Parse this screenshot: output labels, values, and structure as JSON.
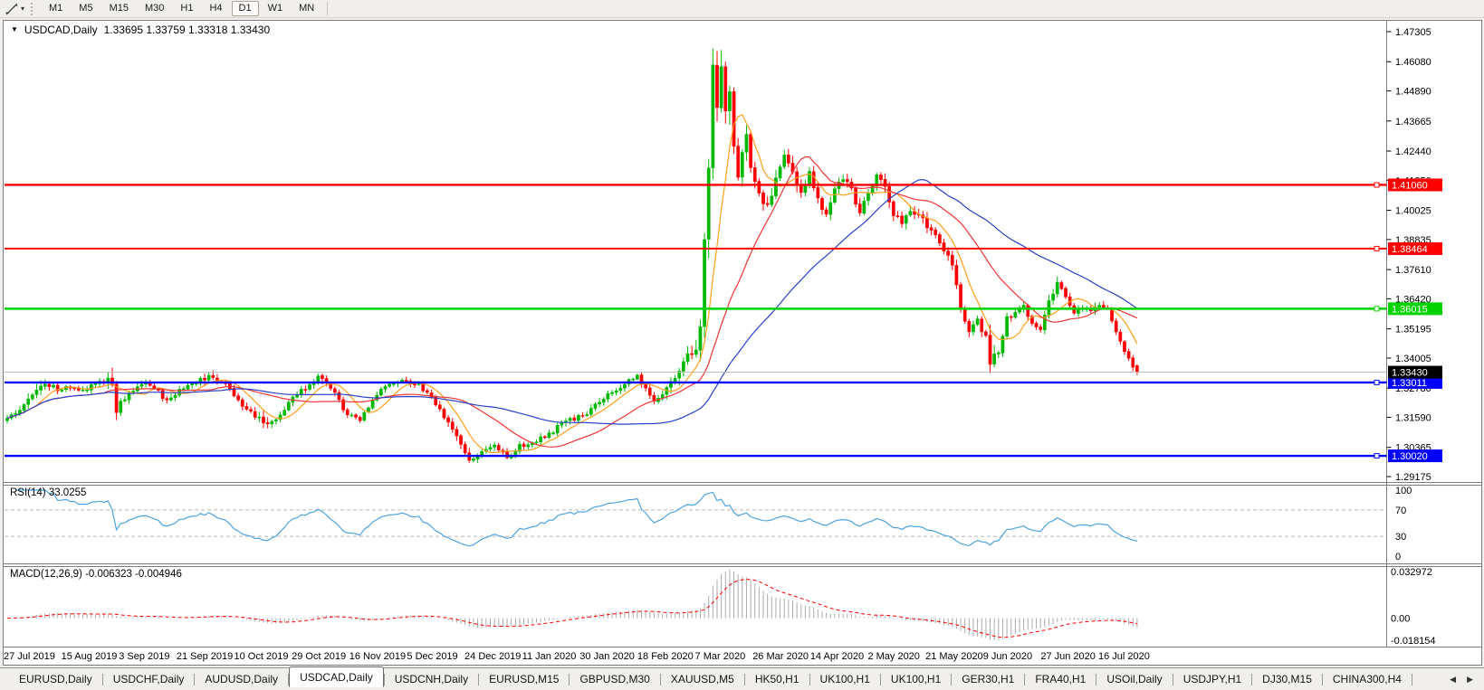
{
  "toolbar": {
    "timeframes": [
      "M1",
      "M5",
      "M15",
      "M30",
      "H1",
      "H4",
      "D1",
      "W1",
      "MN"
    ],
    "active_timeframe": "D1",
    "icons": {
      "tool_glyph": "trendline-icon",
      "dropdown_glyph": "▾"
    }
  },
  "chart": {
    "marker": "▼",
    "symbol_title": "USDCAD,Daily",
    "ohlc_text": "1.33695 1.33759 1.33318 1.33430"
  },
  "chart_data": {
    "type": "candlestick",
    "symbol": "USDCAD",
    "timeframe": "Daily",
    "last_ohlc": {
      "open": 1.33695,
      "high": 1.33759,
      "low": 1.33318,
      "close": 1.3343
    },
    "price_axis_ticks": [
      1.47305,
      1.4608,
      1.4489,
      1.43665,
      1.4244,
      1.4125,
      1.40025,
      1.38835,
      1.3761,
      1.3642,
      1.35195,
      1.34005,
      1.3278,
      1.3159,
      1.30365,
      1.29175
    ],
    "price_axis_range": {
      "top_price": 1.47305,
      "bottom_price": 1.29175
    },
    "date_axis_labels": [
      "27 Jul 2019",
      "15 Aug 2019",
      "3 Sep 2019",
      "21 Sep 2019",
      "10 Oct 2019",
      "29 Oct 2019",
      "16 Nov 2019",
      "5 Dec 2019",
      "24 Dec 2019",
      "11 Jan 2020",
      "30 Jan 2020",
      "18 Feb 2020",
      "7 Mar 2020",
      "26 Mar 2020",
      "14 Apr 2020",
      "2 May 2020",
      "21 May 2020",
      "9 Jun 2020",
      "27 Jun 2020",
      "16 Jul 2020"
    ],
    "horizontal_lines": [
      {
        "price": 1.4106,
        "label": "1.41060",
        "color": "#ff0000",
        "width": 2.4
      },
      {
        "price": 1.38464,
        "label": "1.38464",
        "color": "#ff0000",
        "width": 2.0
      },
      {
        "price": 1.36015,
        "label": "1.36015",
        "color": "#00d300",
        "width": 2.4
      },
      {
        "price": 1.33011,
        "label": "1.33011",
        "color": "#0000ff",
        "width": 2.4
      },
      {
        "price": 1.3002,
        "label": "1.30020",
        "color": "#0000ff",
        "width": 2.4
      }
    ],
    "current_price": {
      "value": 1.3343,
      "label": "1.33430",
      "line_color": "#bbbbbb",
      "box_color": "#000000"
    },
    "candles": {
      "count": 270,
      "seed": 12,
      "up_color": "#00b800",
      "down_color": "#ff0000",
      "close_anchors": [
        [
          0,
          1.316,
          2
        ],
        [
          3,
          1.3195,
          2
        ],
        [
          6,
          1.325,
          3
        ],
        [
          9,
          1.33,
          3
        ],
        [
          12,
          1.327,
          2
        ],
        [
          15,
          1.3285,
          2
        ],
        [
          18,
          1.3262,
          2
        ],
        [
          21,
          1.33,
          2
        ],
        [
          24,
          1.3322,
          4
        ],
        [
          25,
          1.329,
          5
        ],
        [
          26,
          1.319,
          4
        ],
        [
          28,
          1.324,
          3
        ],
        [
          30,
          1.3268,
          2
        ],
        [
          33,
          1.3295,
          2
        ],
        [
          36,
          1.3262,
          2
        ],
        [
          38,
          1.3225,
          2
        ],
        [
          40,
          1.3258,
          2
        ],
        [
          44,
          1.33,
          2
        ],
        [
          48,
          1.332,
          3
        ],
        [
          52,
          1.3295,
          2
        ],
        [
          54,
          1.3245,
          2
        ],
        [
          58,
          1.318,
          2
        ],
        [
          61,
          1.3135,
          3
        ],
        [
          64,
          1.3152,
          2
        ],
        [
          68,
          1.3242,
          2
        ],
        [
          72,
          1.3292,
          2
        ],
        [
          74,
          1.3322,
          4
        ],
        [
          76,
          1.33,
          2
        ],
        [
          78,
          1.3252,
          2
        ],
        [
          81,
          1.317,
          2
        ],
        [
          84,
          1.3142,
          2
        ],
        [
          87,
          1.323,
          2
        ],
        [
          90,
          1.329,
          2
        ],
        [
          94,
          1.3312,
          2
        ],
        [
          98,
          1.3292,
          2
        ],
        [
          101,
          1.3232,
          2
        ],
        [
          104,
          1.3162,
          2
        ],
        [
          107,
          1.3072,
          3
        ],
        [
          110,
          1.2985,
          3
        ],
        [
          113,
          1.3012,
          2
        ],
        [
          116,
          1.305,
          2
        ],
        [
          119,
          1.2992,
          2
        ],
        [
          122,
          1.3042,
          2
        ],
        [
          126,
          1.3062,
          2
        ],
        [
          130,
          1.3102,
          2
        ],
        [
          133,
          1.3148,
          2
        ],
        [
          137,
          1.3162,
          2
        ],
        [
          141,
          1.3222,
          2
        ],
        [
          145,
          1.3272,
          2
        ],
        [
          148,
          1.3305,
          2
        ],
        [
          150,
          1.333,
          2
        ],
        [
          152,
          1.327,
          2
        ],
        [
          154,
          1.3225,
          2
        ],
        [
          156,
          1.3255,
          2
        ],
        [
          158,
          1.3302,
          3
        ],
        [
          160,
          1.336,
          4
        ],
        [
          162,
          1.342,
          4
        ],
        [
          164,
          1.344,
          5
        ],
        [
          165,
          1.356,
          7
        ],
        [
          166,
          1.385,
          9
        ],
        [
          167,
          1.415,
          12
        ],
        [
          168,
          1.453,
          20
        ],
        [
          169,
          1.445,
          10
        ],
        [
          170,
          1.46,
          9
        ],
        [
          171,
          1.444,
          8
        ],
        [
          172,
          1.45,
          7
        ],
        [
          173,
          1.428,
          7
        ],
        [
          174,
          1.411,
          6
        ],
        [
          175,
          1.423,
          5
        ],
        [
          176,
          1.431,
          5
        ],
        [
          177,
          1.419,
          5
        ],
        [
          179,
          1.408,
          4
        ],
        [
          181,
          1.401,
          4
        ],
        [
          183,
          1.412,
          4
        ],
        [
          185,
          1.4235,
          4
        ],
        [
          187,
          1.416,
          4
        ],
        [
          189,
          1.407,
          3
        ],
        [
          191,
          1.4155,
          3
        ],
        [
          193,
          1.405,
          3
        ],
        [
          195,
          1.3985,
          3
        ],
        [
          197,
          1.408,
          3
        ],
        [
          199,
          1.4135,
          3
        ],
        [
          201,
          1.408,
          3
        ],
        [
          203,
          1.4,
          3
        ],
        [
          205,
          1.408,
          3
        ],
        [
          207,
          1.414,
          3
        ],
        [
          209,
          1.4105,
          3
        ],
        [
          211,
          1.399,
          3
        ],
        [
          213,
          1.395,
          3
        ],
        [
          215,
          1.401,
          3
        ],
        [
          217,
          1.3985,
          3
        ],
        [
          219,
          1.394,
          3
        ],
        [
          221,
          1.389,
          3
        ],
        [
          223,
          1.384,
          3
        ],
        [
          225,
          1.378,
          3
        ],
        [
          227,
          1.3615,
          4
        ],
        [
          229,
          1.35,
          4
        ],
        [
          231,
          1.3548,
          3
        ],
        [
          233,
          1.3482,
          3
        ],
        [
          234,
          1.3385,
          6
        ],
        [
          236,
          1.3425,
          3
        ],
        [
          238,
          1.3562,
          3
        ],
        [
          240,
          1.3585,
          2
        ],
        [
          242,
          1.3608,
          2
        ],
        [
          244,
          1.3548,
          2
        ],
        [
          246,
          1.3512,
          2
        ],
        [
          248,
          1.3625,
          3
        ],
        [
          250,
          1.3712,
          3
        ],
        [
          252,
          1.3655,
          2
        ],
        [
          254,
          1.3582,
          2
        ],
        [
          256,
          1.3608,
          2
        ],
        [
          258,
          1.3592,
          2
        ],
        [
          260,
          1.3622,
          2
        ],
        [
          262,
          1.3605,
          2
        ],
        [
          264,
          1.3502,
          2
        ],
        [
          266,
          1.3418,
          2
        ],
        [
          268,
          1.3372,
          2
        ],
        [
          269,
          1.3343,
          1
        ]
      ]
    },
    "moving_averages": [
      {
        "name": "fast-ma",
        "period": 8,
        "color": "#ff9f1a"
      },
      {
        "name": "medium-ma",
        "period": 24,
        "color": "#ef3535"
      },
      {
        "name": "slow-ma",
        "period": 52,
        "color": "#2741c8"
      }
    ],
    "rsi": {
      "label": "RSI(14) 33.0255",
      "period": 14,
      "value": 33.0255,
      "levels": [
        70,
        30
      ],
      "axis_ticks": [
        "100",
        "70",
        "30",
        "0"
      ],
      "color": "#4da3e0"
    },
    "macd": {
      "label": "MACD(12,26,9) -0.006323 -0.004946",
      "fast": 12,
      "slow": 26,
      "signal": 9,
      "value": -0.006323,
      "signal_value": -0.004946,
      "axis_ticks": [
        "0.032972",
        "0.00",
        "-0.018154"
      ],
      "axis_max": 0.032972,
      "axis_min": -0.018154,
      "histogram_color": "#ababab",
      "signal_color": "#ff0000"
    }
  },
  "tabs": {
    "items": [
      "EURUSD,Daily",
      "USDCHF,Daily",
      "AUDUSD,Daily",
      "USDCAD,Daily",
      "USDCNH,Daily",
      "EURUSD,M15",
      "GBPUSD,M30",
      "XAUUSD,M5",
      "HK50,H1",
      "UK100,H1",
      "UK100,H1",
      "GER30,H1",
      "FRA40,H1",
      "USOil,Daily",
      "USDJPY,H1",
      "DJ30,M15",
      "CHINA300,H4"
    ],
    "active": "USDCAD,Daily",
    "scroll_left_glyph": "◀",
    "scroll_right_glyph": "▶"
  }
}
